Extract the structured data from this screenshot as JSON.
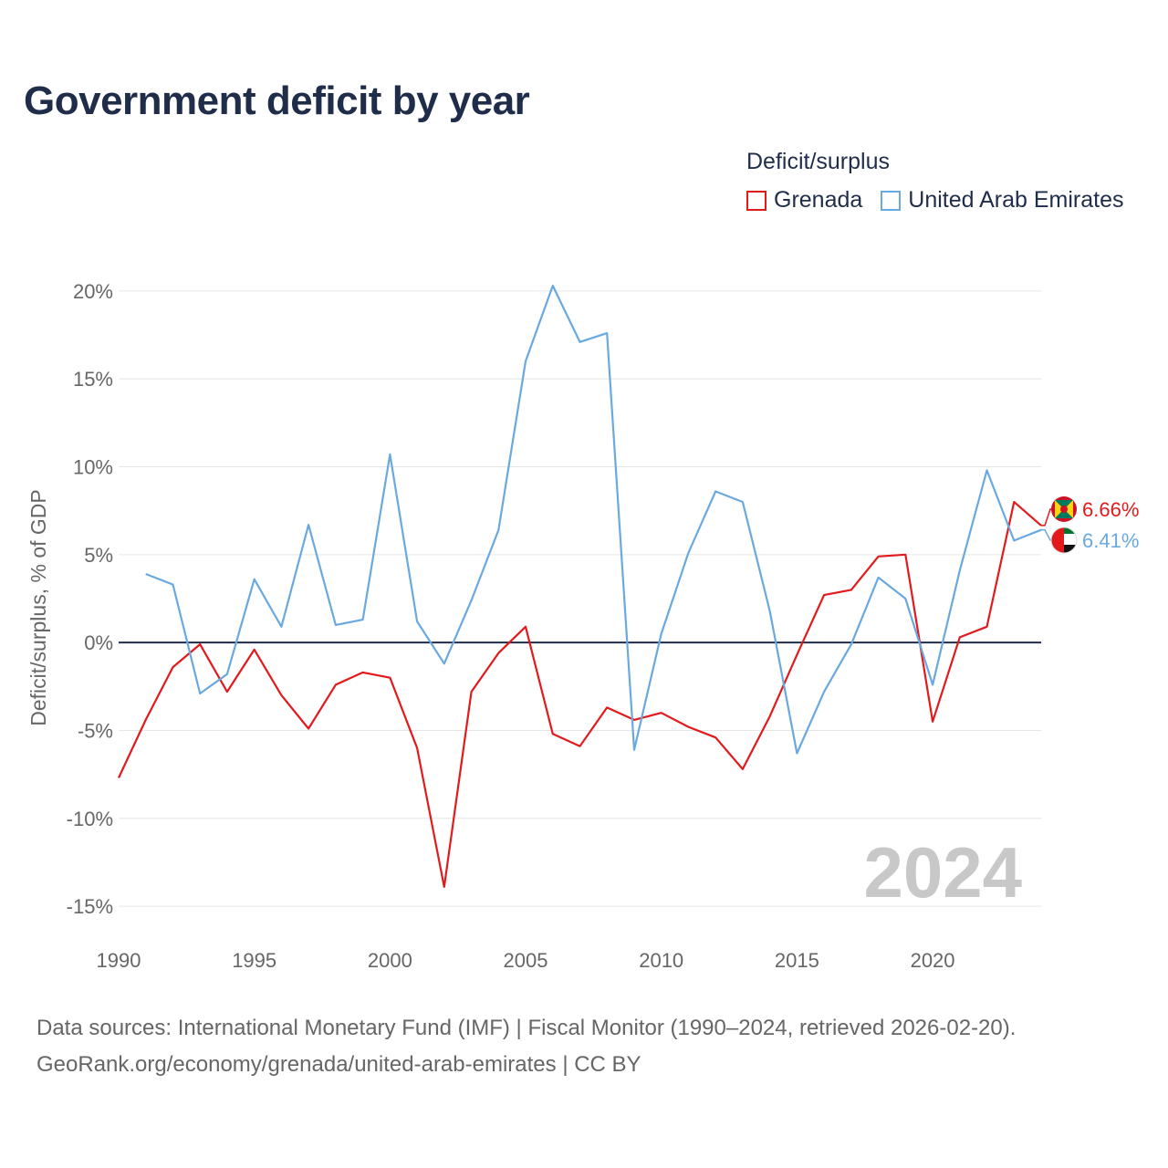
{
  "title": "Government deficit by year",
  "legend": {
    "title": "Deficit/surplus",
    "items": [
      {
        "label": "Grenada",
        "color": "#e31a1c"
      },
      {
        "label": "United Arab Emirates",
        "color": "#6aa9e0"
      }
    ]
  },
  "chart_data": {
    "type": "line",
    "title": "Government deficit by year",
    "xlabel": "",
    "ylabel": "Deficit/surplus, % of GDP",
    "x": [
      1990,
      1991,
      1992,
      1993,
      1994,
      1995,
      1996,
      1997,
      1998,
      1999,
      2000,
      2001,
      2002,
      2003,
      2004,
      2005,
      2006,
      2007,
      2008,
      2009,
      2010,
      2011,
      2012,
      2013,
      2014,
      2015,
      2016,
      2017,
      2018,
      2019,
      2020,
      2021,
      2022,
      2023,
      2024
    ],
    "xlim": [
      1990,
      2024
    ],
    "ylim": [
      -16.5,
      21.5
    ],
    "x_ticks": [
      1990,
      1995,
      2000,
      2005,
      2010,
      2015,
      2020
    ],
    "x_tick_labels": [
      "1990",
      "1995",
      "2000",
      "2005",
      "2010",
      "2015",
      "2020"
    ],
    "y_ticks": [
      -15,
      -10,
      -5,
      0,
      5,
      10,
      15,
      20
    ],
    "y_tick_labels": [
      "-15%",
      "-10%",
      "-5%",
      "0%",
      "5%",
      "10%",
      "15%",
      "20%"
    ],
    "grid": true,
    "legend_position": "top-right",
    "watermark_year": "2024",
    "series": [
      {
        "name": "Grenada",
        "color": "#e31a1c",
        "values": [
          -7.7,
          -4.4,
          -1.4,
          -0.1,
          -2.8,
          -0.4,
          -3.0,
          -4.9,
          -2.4,
          -1.7,
          -2.0,
          -6.0,
          -13.9,
          -2.8,
          -0.6,
          0.9,
          -5.2,
          -5.9,
          -3.7,
          -4.4,
          -4.0,
          -4.8,
          -5.4,
          -7.2,
          -4.2,
          -0.7,
          2.7,
          3.0,
          4.9,
          5.0,
          -4.5,
          0.3,
          0.9,
          8.0,
          6.66
        ],
        "end_label": "6.66%"
      },
      {
        "name": "United Arab Emirates",
        "color": "#6aa9e0",
        "values": [
          null,
          3.9,
          3.3,
          -2.9,
          -1.8,
          3.6,
          0.9,
          6.7,
          1.0,
          1.3,
          10.7,
          1.2,
          -1.2,
          2.4,
          6.4,
          16.0,
          20.3,
          17.1,
          17.6,
          -6.1,
          0.5,
          5.1,
          8.6,
          8.0,
          1.8,
          -6.3,
          -2.8,
          -0.1,
          3.7,
          2.5,
          -2.4,
          4.1,
          9.8,
          5.8,
          6.41
        ],
        "end_label": "6.41%"
      }
    ]
  },
  "footer": {
    "line1": "Data sources: International Monetary Fund (IMF) | Fiscal Monitor (1990–2024, retrieved 2026-02-20).",
    "line2": "GeoRank.org/economy/grenada/united-arab-emirates | CC BY"
  }
}
